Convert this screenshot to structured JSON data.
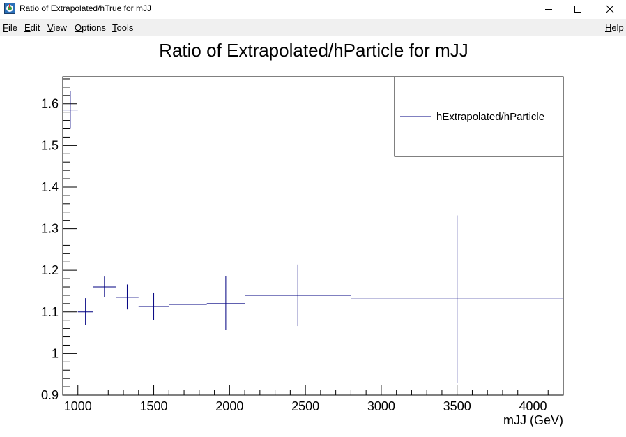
{
  "window": {
    "title": "Ratio of Extrapolated/hTrue for mJJ",
    "icon": "root-app-icon",
    "controls": [
      "minimize-icon",
      "maximize-icon",
      "close-icon"
    ]
  },
  "menu": {
    "file": "File",
    "edit": "Edit",
    "view": "View",
    "options": "Options",
    "tools": "Tools",
    "help": "Help"
  },
  "chart_data": {
    "type": "scatter",
    "title": "Ratio of Extrapolated/hParticle for mJJ",
    "xlabel": "mJJ (GeV)",
    "ylabel": "",
    "xlim": [
      900,
      4200
    ],
    "ylim": [
      0.9,
      1.665
    ],
    "xticks": [
      1000,
      1500,
      2000,
      2500,
      3000,
      3500,
      4000
    ],
    "xtick_labels": [
      "1000",
      "1500",
      "2000",
      "2500",
      "3000",
      "3500",
      "4000"
    ],
    "yticks": [
      0.9,
      1,
      1.1,
      1.2,
      1.3,
      1.4,
      1.5,
      1.6
    ],
    "ytick_labels": [
      "0.9",
      "1",
      "1.1",
      "1.2",
      "1.3",
      "1.4",
      "1.5",
      "1.6"
    ],
    "legend": {
      "position": "top-right",
      "entries": [
        "hExtrapolated/hParticle"
      ]
    },
    "series": [
      {
        "name": "hExtrapolated/hParticle",
        "color": "#000080",
        "points": [
          {
            "x": 950,
            "xlow": 900,
            "xhigh": 1000,
            "y": 1.585,
            "ylow": 1.54,
            "yhigh": 1.63
          },
          {
            "x": 1050,
            "xlow": 1000,
            "xhigh": 1100,
            "y": 1.1,
            "ylow": 1.068,
            "yhigh": 1.133
          },
          {
            "x": 1175,
            "xlow": 1100,
            "xhigh": 1250,
            "y": 1.16,
            "ylow": 1.135,
            "yhigh": 1.185
          },
          {
            "x": 1325,
            "xlow": 1250,
            "xhigh": 1400,
            "y": 1.135,
            "ylow": 1.106,
            "yhigh": 1.166
          },
          {
            "x": 1500,
            "xlow": 1400,
            "xhigh": 1600,
            "y": 1.113,
            "ylow": 1.081,
            "yhigh": 1.145
          },
          {
            "x": 1725,
            "xlow": 1600,
            "xhigh": 1850,
            "y": 1.118,
            "ylow": 1.074,
            "yhigh": 1.162
          },
          {
            "x": 1975,
            "xlow": 1850,
            "xhigh": 2100,
            "y": 1.12,
            "ylow": 1.056,
            "yhigh": 1.186
          },
          {
            "x": 2450,
            "xlow": 2100,
            "xhigh": 2800,
            "y": 1.14,
            "ylow": 1.066,
            "yhigh": 1.214
          },
          {
            "x": 3500,
            "xlow": 2800,
            "xhigh": 4200,
            "y": 1.131,
            "ylow": 0.93,
            "yhigh": 1.332
          }
        ]
      }
    ]
  }
}
